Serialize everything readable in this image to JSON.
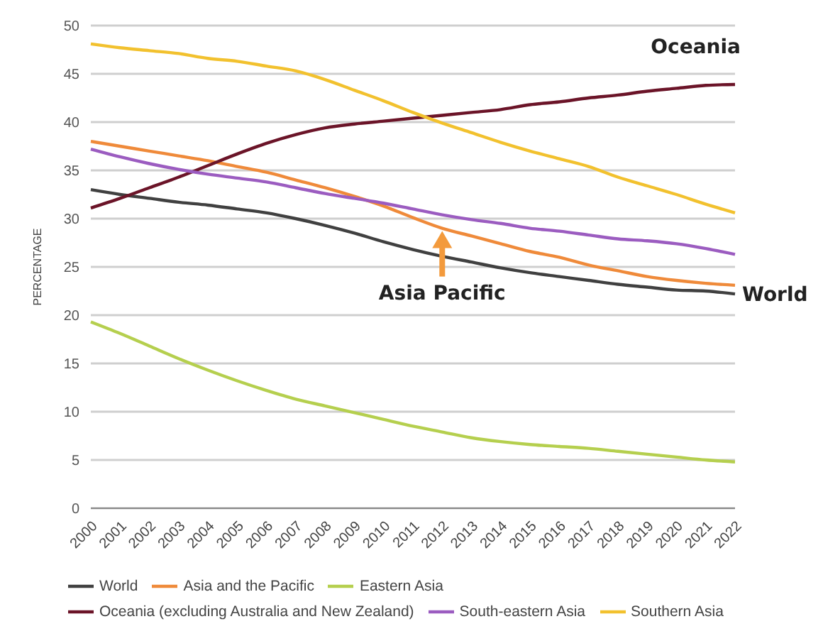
{
  "chart_data": {
    "type": "line",
    "ylabel": "PERCENTAGE",
    "categories": [
      "2000",
      "2001",
      "2002",
      "2003",
      "2004",
      "2005",
      "2006",
      "2007",
      "2008",
      "2009",
      "2010",
      "2011",
      "2012",
      "2013",
      "2014",
      "2015",
      "2016",
      "2017",
      "2018",
      "2019",
      "2020",
      "2021",
      "2022"
    ],
    "series": [
      {
        "name": "World",
        "color": "#404040",
        "values": [
          33.0,
          32.5,
          32.1,
          31.7,
          31.4,
          31.0,
          30.6,
          30.0,
          29.3,
          28.5,
          27.6,
          26.8,
          26.1,
          25.5,
          24.9,
          24.4,
          24.0,
          23.6,
          23.2,
          22.9,
          22.6,
          22.5,
          22.2
        ]
      },
      {
        "name": "Asia and the Pacific",
        "color": "#ef8a3a",
        "values": [
          38.0,
          37.5,
          37.0,
          36.5,
          36.0,
          35.4,
          34.8,
          34.0,
          33.2,
          32.3,
          31.3,
          30.1,
          29.0,
          28.2,
          27.4,
          26.6,
          26.0,
          25.2,
          24.6,
          24.0,
          23.6,
          23.3,
          23.1
        ]
      },
      {
        "name": "Eastern Asia",
        "color": "#b5cf4e",
        "values": [
          19.3,
          18.1,
          16.8,
          15.5,
          14.3,
          13.2,
          12.2,
          11.3,
          10.6,
          9.9,
          9.2,
          8.5,
          7.9,
          7.3,
          6.9,
          6.6,
          6.4,
          6.2,
          5.9,
          5.6,
          5.3,
          5.0,
          4.8
        ]
      },
      {
        "name": "Oceania (excluding Australia and New Zealand)",
        "color": "#6b1428",
        "values": [
          31.1,
          32.1,
          33.2,
          34.3,
          35.5,
          36.7,
          37.8,
          38.7,
          39.4,
          39.8,
          40.1,
          40.4,
          40.7,
          41.0,
          41.3,
          41.8,
          42.1,
          42.5,
          42.8,
          43.2,
          43.5,
          43.8,
          43.9
        ]
      },
      {
        "name": "South-eastern Asia",
        "color": "#9b5cc0",
        "values": [
          37.2,
          36.4,
          35.7,
          35.1,
          34.6,
          34.2,
          33.8,
          33.2,
          32.6,
          32.1,
          31.6,
          31.0,
          30.4,
          29.9,
          29.5,
          29.0,
          28.7,
          28.3,
          27.9,
          27.7,
          27.4,
          26.9,
          26.3
        ]
      },
      {
        "name": "Southern Asia",
        "color": "#f2c12e",
        "values": [
          48.1,
          47.7,
          47.4,
          47.1,
          46.6,
          46.3,
          45.8,
          45.3,
          44.4,
          43.3,
          42.2,
          41.0,
          39.9,
          38.9,
          37.9,
          37.0,
          36.2,
          35.4,
          34.3,
          33.4,
          32.5,
          31.5,
          30.6
        ]
      }
    ],
    "ylim": [
      0,
      50
    ],
    "yticks": [
      0,
      5,
      10,
      15,
      20,
      25,
      30,
      35,
      40,
      45,
      50
    ],
    "grid": "y",
    "legend": "bottom",
    "marker": "none",
    "line_style": "solid",
    "annotations": [
      {
        "text": "Oceania",
        "x": "2022",
        "y": 43.9
      },
      {
        "text": "Asia Pacific",
        "x": "2012",
        "y": 29.0
      },
      {
        "text": "World",
        "x": "2022",
        "y": 22.2
      }
    ]
  }
}
